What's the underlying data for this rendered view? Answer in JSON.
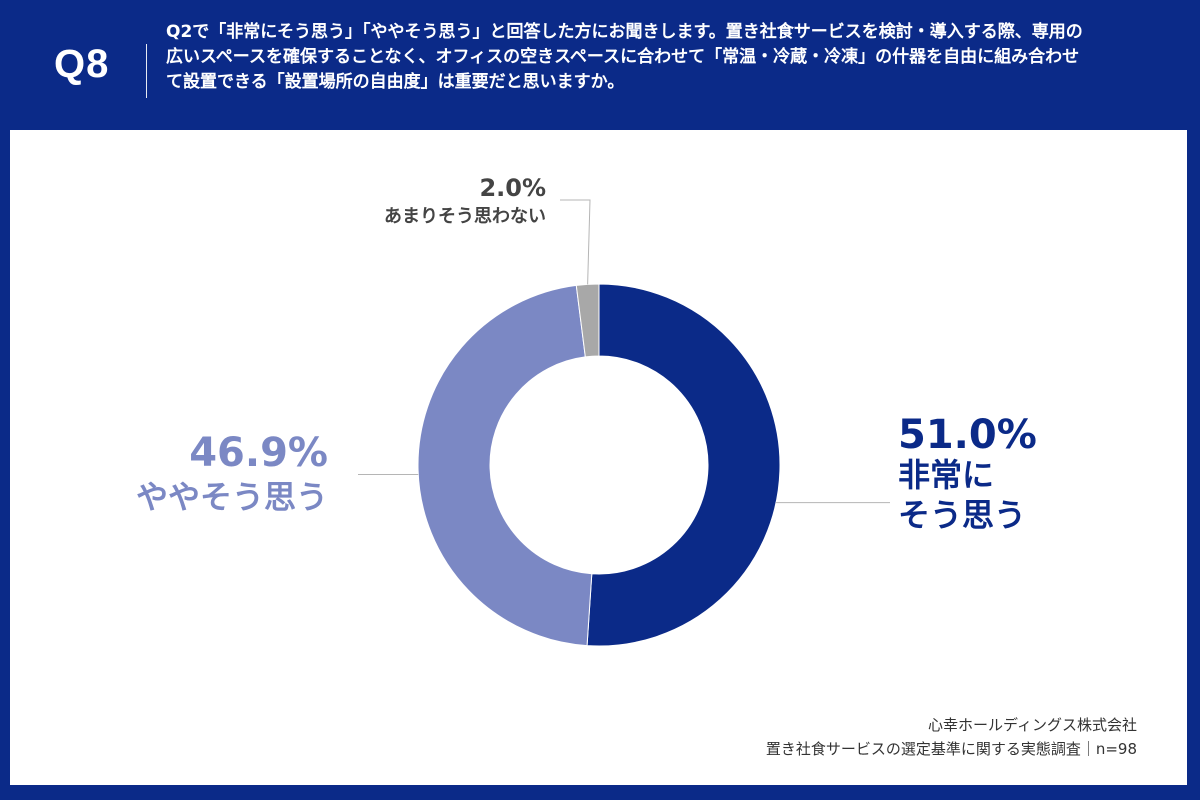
{
  "header": {
    "question_label": "Q8",
    "question_text": "Q2で「非常にそう思う」「ややそう思う」と回答した方にお聞きします。置き社食サービスを検討・導入する際、専用の広いスペースを確保することなく、オフィスの空きスペースに合わせて「常温・冷蔵・冷凍」の什器を自由に組み合わせて設置できる「設置場所の自由度」は重要だと思いますか。"
  },
  "chart_data": {
    "type": "pie",
    "donut": true,
    "unit": "%",
    "slices": [
      {
        "label_lines": [
          "非常に",
          "そう思う"
        ],
        "value": 51.0,
        "value_label": "51.0%",
        "color": "#0b2a88"
      },
      {
        "label_lines": [
          "ややそう思う"
        ],
        "value": 46.9,
        "value_label": "46.9%",
        "color": "#7b88c4"
      },
      {
        "label_lines": [
          "あまりそう思わない"
        ],
        "value": 2.0,
        "value_label": "2.0%",
        "color": "#a8a8a8"
      }
    ]
  },
  "footer": {
    "company": "心幸ホールディングス株式会社",
    "survey": "置き社食サービスの選定基準に関する実態調査｜n=98"
  },
  "colors": {
    "brand": "#0b2a88",
    "light_series": "#7b88c4",
    "gray_series": "#a8a8a8",
    "label_dark": "#444444"
  }
}
